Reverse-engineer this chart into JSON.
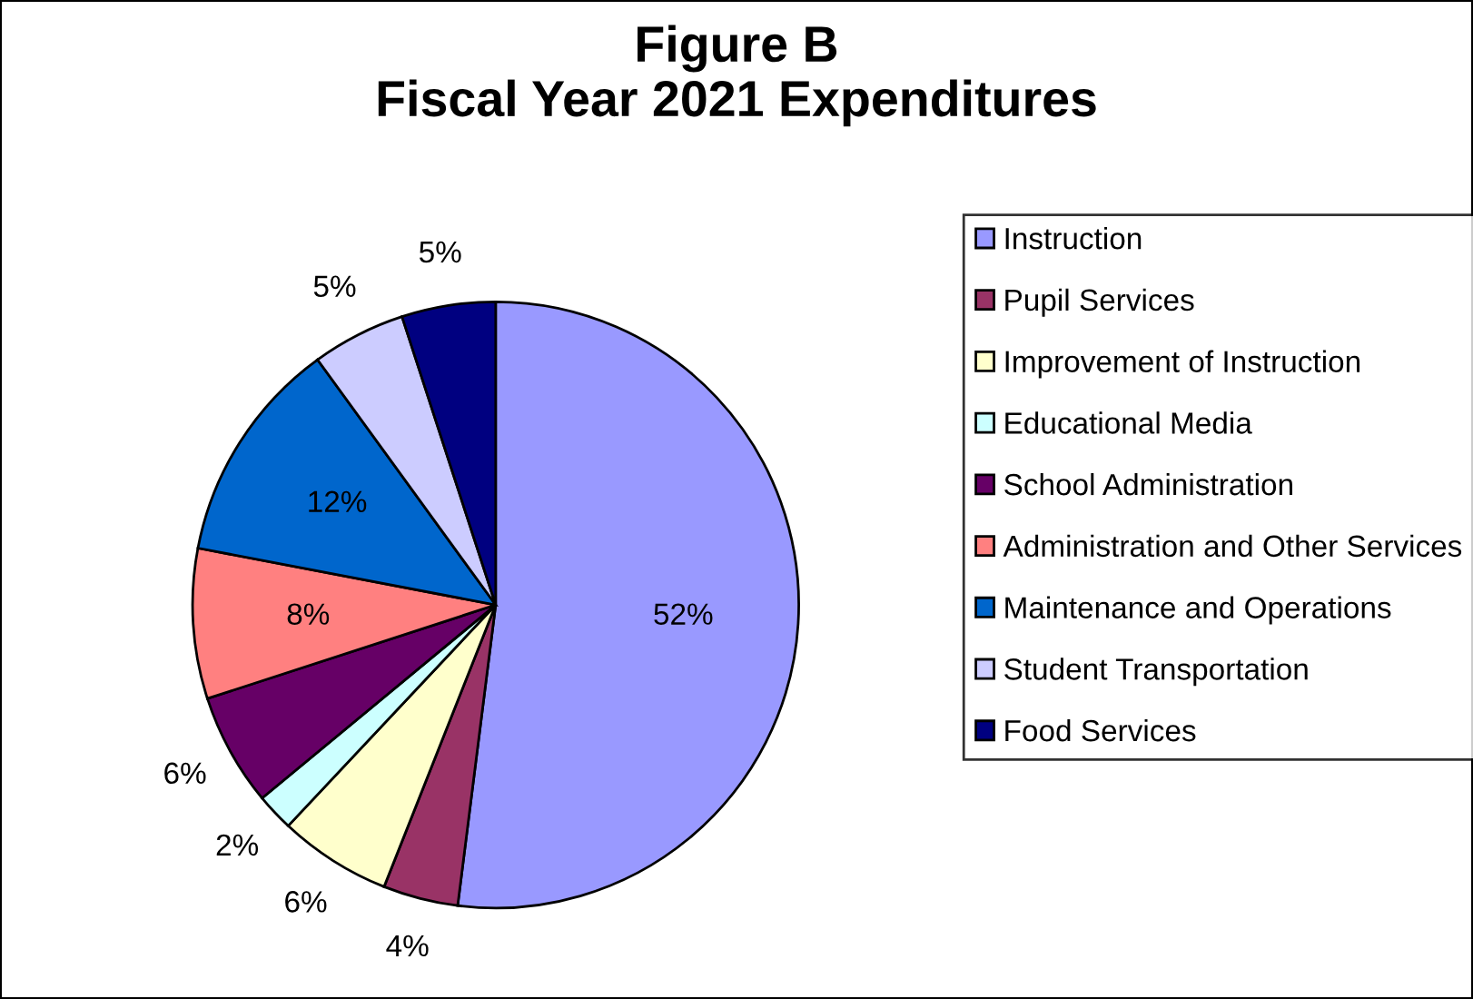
{
  "chart_data": {
    "type": "pie",
    "title": "Figure B\nFiscal Year 2021 Expenditures",
    "categories": [
      "Instruction",
      "Pupil Services",
      "Improvement of Instruction",
      "Educational Media",
      "School Administration",
      "Administration and Other Services",
      "Maintenance and Operations",
      "Student Transportation",
      "Food Services"
    ],
    "values": [
      52,
      4,
      6,
      2,
      6,
      8,
      12,
      5,
      5
    ],
    "colors": [
      "#9999ff",
      "#993366",
      "#ffffcc",
      "#ccffff",
      "#660066",
      "#ff8080",
      "#0066cc",
      "#ccccff",
      "#000080"
    ],
    "value_labels": [
      "52%",
      "4%",
      "6%",
      "2%",
      "6%",
      "8%",
      "12%",
      "5%",
      "5%"
    ],
    "legend": "right"
  }
}
